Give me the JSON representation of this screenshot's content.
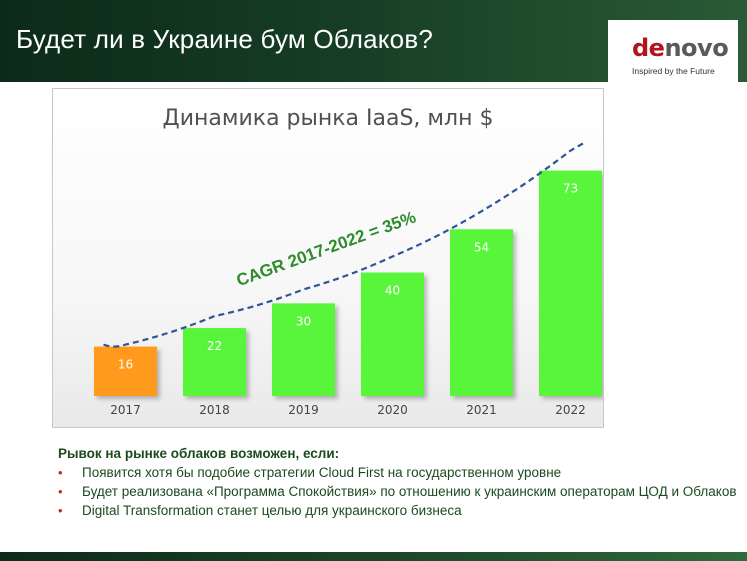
{
  "header": {
    "title": "Будет ли в Украине бум Облаков?"
  },
  "logo": {
    "word_part1": "de",
    "word_part2": "novo",
    "tagline": "Inspired by the Future"
  },
  "colors": {
    "header_dark": "#0c2a18",
    "bar_green": "#59f53a",
    "bar_orange": "#ff9a1a",
    "trend_blue": "#2f5597",
    "cagr_green": "#2e8b2e",
    "text_green": "#1b4a1f",
    "bullet_red": "#c62828"
  },
  "chart_data": {
    "type": "bar",
    "title": "Динамика рынка IaaS, млн $",
    "categories": [
      "2017",
      "2018",
      "2019",
      "2020",
      "2021",
      "2022"
    ],
    "values": [
      16,
      22,
      30,
      40,
      54,
      73
    ],
    "data_labels": [
      "16",
      "22",
      "30",
      "40",
      "54",
      "73"
    ],
    "highlight_index": 0,
    "ylim": [
      0,
      80
    ],
    "grid": false,
    "trendline": "dashed exponential curve",
    "annotation": "CAGR 2017-2022 = 35%"
  },
  "bullets": {
    "heading": "Рывок на рынке облаков возможен, если:",
    "items": [
      "Появится хотя бы подобие стратегии Cloud First на государственном уровне",
      "Будет реализована «Программа Спокойствия» по отношению к украинским операторам ЦОД и Облаков",
      "Digital Transformation станет целью для украинского бизнеса"
    ],
    "bullet_symbol": "•"
  }
}
